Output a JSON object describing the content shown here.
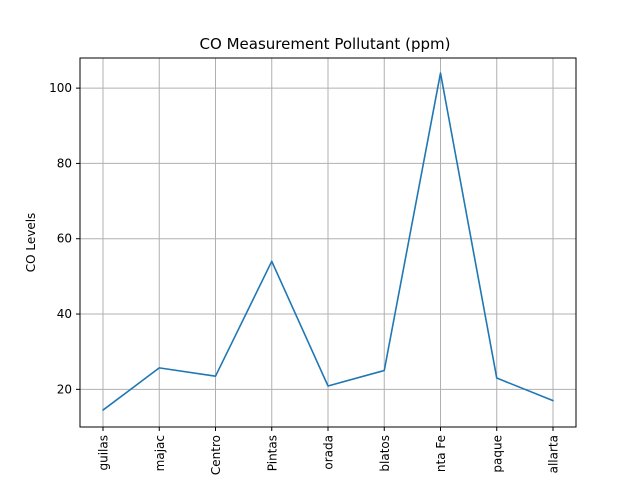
{
  "chart_data": {
    "type": "line",
    "title": "CO Measurement Pollutant (ppm)",
    "xlabel": "",
    "ylabel": "CO Levels",
    "categories": [
      "guilas",
      "majac",
      "Centro",
      "Pintas",
      "orada",
      "blatos",
      "nta Fe",
      "paque",
      "allarta"
    ],
    "series": [
      {
        "values": [
          14.5,
          25.7,
          23.5,
          54.0,
          20.9,
          25.0,
          104.0,
          23.0,
          17.0
        ],
        "color": "#1f77b4"
      }
    ],
    "ylim": [
      10,
      108
    ],
    "yticks": [
      20,
      40,
      60,
      80,
      100
    ],
    "grid": true,
    "legend": "none"
  }
}
